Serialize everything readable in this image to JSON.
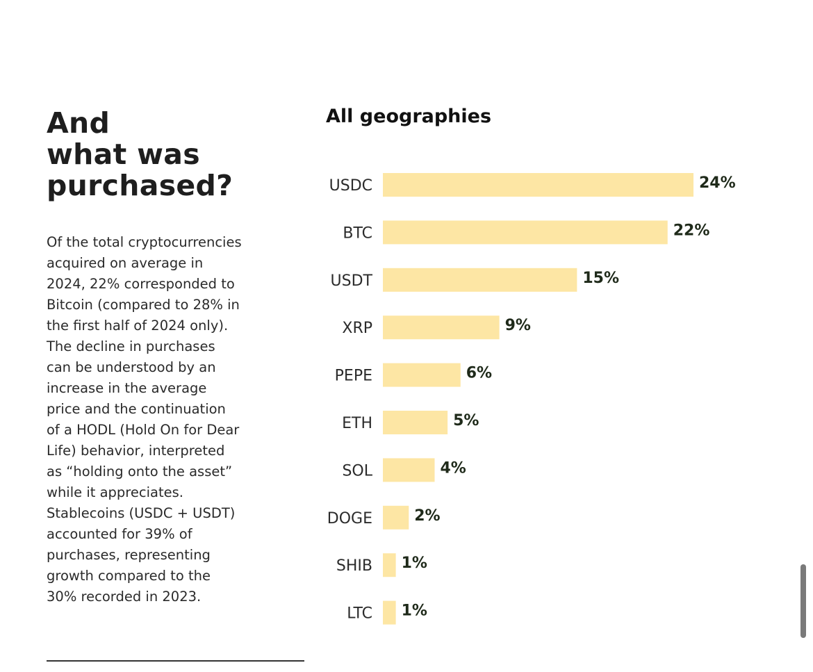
{
  "headline": {
    "lines": [
      "And",
      "what was",
      "purchased?"
    ]
  },
  "body": {
    "lines": [
      "Of the total cryptocurrencies",
      "acquired on average in",
      "2024, 22% corresponded to",
      "Bitcoin (compared to 28% in",
      "the first half of 2024 only).",
      "The decline in purchases",
      "can be understood by an",
      "increase in the average",
      "price and the continuation",
      "of a HODL (Hold On for Dear",
      "Life) behavior, interpreted",
      "as “holding onto the asset”",
      "while it appreciates.",
      "Stablecoins (USDC + USDT)",
      "accounted for 39% of",
      "purchases, representing",
      "growth compared to the",
      "30% recorded in 2023."
    ]
  },
  "colors": {
    "bar": "#fde6a4",
    "value_label": "#1f2a1a",
    "category_label": "#2b2b2b"
  },
  "chart_data": {
    "type": "bar",
    "orientation": "horizontal",
    "title": "All geographies",
    "xlabel": "",
    "ylabel": "",
    "categories": [
      "USDC",
      "BTC",
      "USDT",
      "XRP",
      "PEPE",
      "ETH",
      "SOL",
      "DOGE",
      "SHIB",
      "LTC"
    ],
    "values": [
      24,
      22,
      15,
      9,
      6,
      5,
      4,
      2,
      1,
      1
    ],
    "value_labels": [
      "24%",
      "22%",
      "15%",
      "9%",
      "6%",
      "5%",
      "4%",
      "2%",
      "1%",
      "1%"
    ],
    "unit": "%",
    "xlim": [
      0,
      24
    ],
    "grid": false,
    "legend": "none"
  }
}
